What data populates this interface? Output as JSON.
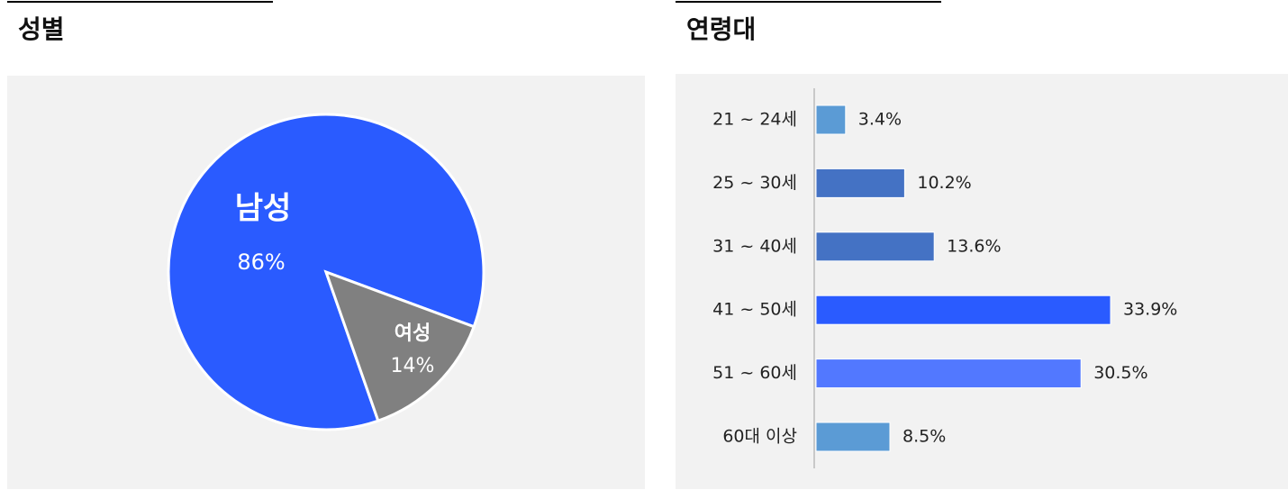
{
  "chart_data": [
    {
      "type": "pie",
      "title": "성별",
      "categories": [
        "남성",
        "여성"
      ],
      "values": [
        86,
        14
      ],
      "value_labels": [
        "86%",
        "14%"
      ],
      "colors": [
        "#2a5bff",
        "#808080"
      ]
    },
    {
      "type": "barh",
      "title": "연령대",
      "categories": [
        "21 ~ 24세",
        "25 ~ 30세",
        "31 ~ 40세",
        "41 ~ 50세",
        "51 ~ 60세",
        "60대 이상"
      ],
      "values": [
        3.4,
        10.2,
        13.6,
        33.9,
        30.5,
        8.5
      ],
      "value_labels": [
        "3.4%",
        "10.2%",
        "13.6%",
        "33.9%",
        "30.5%",
        "8.5%"
      ],
      "colors": [
        "#5b9bd5",
        "#4472c4",
        "#4472c4",
        "#2a5bff",
        "#5278ff",
        "#5b9bd5"
      ]
    }
  ]
}
